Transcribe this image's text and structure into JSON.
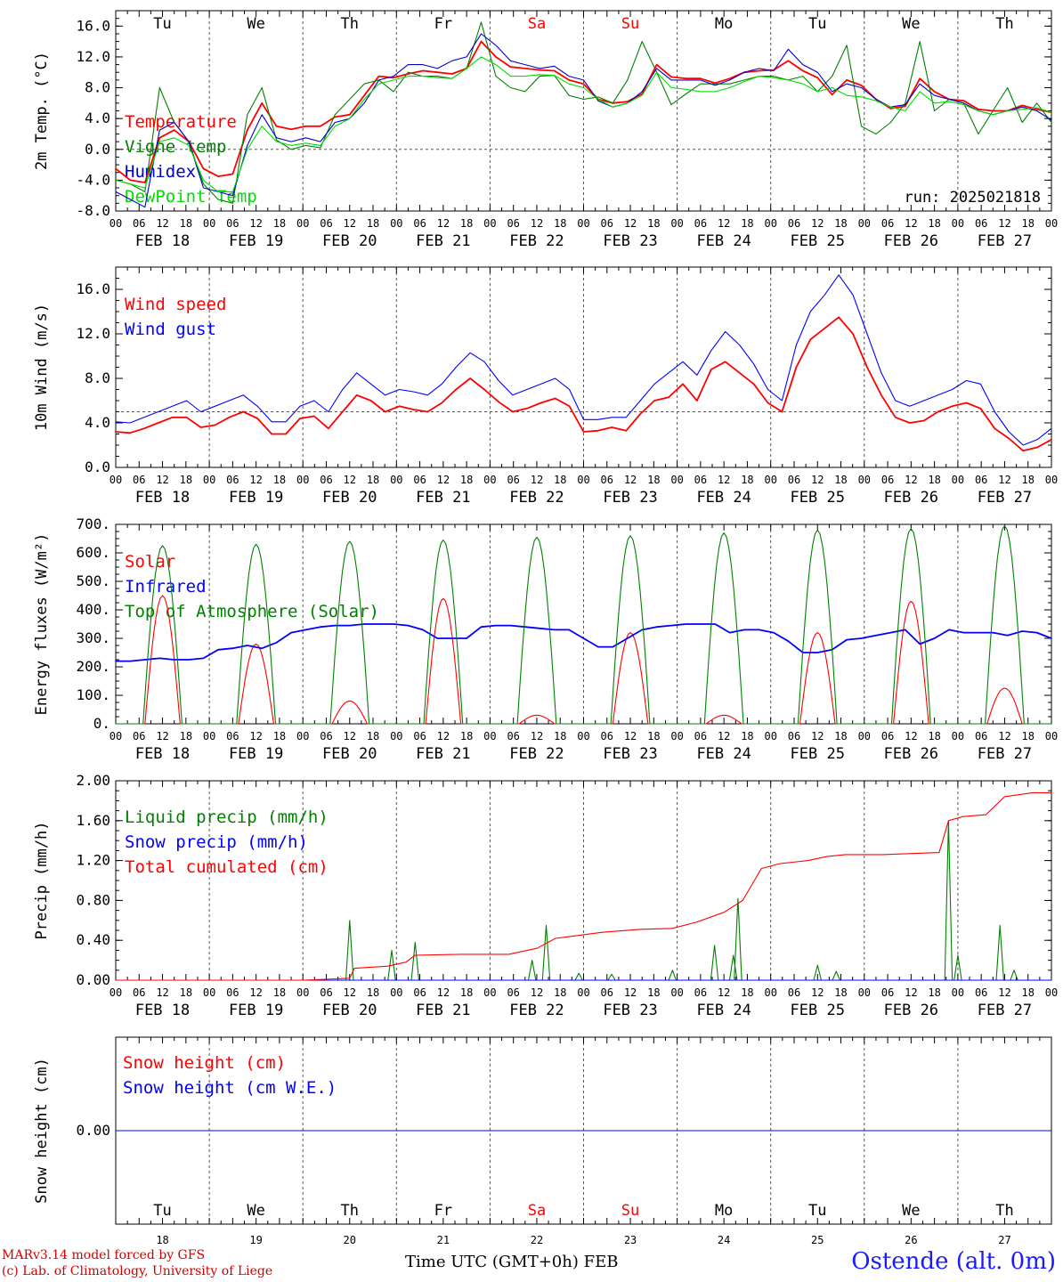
{
  "run_label": "run: 2025021818",
  "footer": {
    "model": "MARv3.14 model forced by GFS",
    "credit": "(c) Lab. of Climatology, University of Liege",
    "xaxis": "Time UTC (GMT+0h) FEB",
    "station": "Ostende (alt. 0m)"
  },
  "time_axis": {
    "days": [
      "FEB 18",
      "FEB 19",
      "FEB 20",
      "FEB 21",
      "FEB 22",
      "FEB 23",
      "FEB 24",
      "FEB 25",
      "FEB 26",
      "FEB 27"
    ],
    "weekdays": [
      "Tu",
      "We",
      "Th",
      "Fr",
      "Sa",
      "Su",
      "Mo",
      "Tu",
      "We",
      "Th"
    ],
    "weekend_color": "#ff0000",
    "weekday_color": "#000000",
    "day_numbers": [
      "18",
      "19",
      "20",
      "21",
      "22",
      "23",
      "24",
      "25",
      "26",
      "27"
    ],
    "hour_ticks": [
      "00",
      "06",
      "12",
      "18"
    ],
    "end_tick": "00"
  },
  "chart_data": [
    {
      "type": "line",
      "ylabel": "2m Temp. (°C)",
      "ylim": [
        -8,
        18
      ],
      "yticks": [
        "-8.0",
        "-4.0",
        "0.0",
        "4.0",
        "8.0",
        "12.0",
        "16.0"
      ],
      "reference_line": 0,
      "series": [
        {
          "name": "Temperature",
          "color": "#ff0000",
          "values": [
            -2.5,
            -4,
            -4.3,
            1.5,
            2.5,
            1,
            -2.5,
            -3.5,
            -3.2,
            2.5,
            6,
            3,
            2.6,
            3,
            3,
            4.2,
            4.5,
            7,
            9.5,
            9.3,
            9.8,
            10.2,
            10,
            9.8,
            10.5,
            14,
            12,
            10.7,
            10.5,
            10.3,
            10.2,
            9,
            8.5,
            6.5,
            6,
            6.2,
            7.2,
            11,
            9.4,
            9.2,
            9.2,
            8.6,
            9.2,
            10,
            10.2,
            10.3,
            11.5,
            10.2,
            9.3,
            7.1,
            9,
            8.3,
            6.5,
            5.3,
            5.6,
            9.2,
            7.5,
            6.5,
            6.3,
            5.2,
            5,
            5,
            5.7,
            5.2,
            4.8
          ]
        },
        {
          "name": "Vigne temp",
          "color": "#008000",
          "values": [
            -4,
            -4.5,
            -5.5,
            8,
            3.5,
            1,
            -4.5,
            -6.5,
            -7,
            4.5,
            8,
            1.2,
            0,
            0.5,
            0.2,
            4.5,
            6.5,
            8.5,
            9,
            7.5,
            10,
            9.5,
            9.5,
            9.2,
            10.5,
            16.5,
            9.5,
            8,
            7.5,
            9.5,
            9.6,
            7,
            6.5,
            6.8,
            6,
            9,
            14,
            10,
            5.8,
            7.2,
            8.5,
            8.5,
            8.5,
            9,
            9.5,
            9.5,
            9,
            9.5,
            7.5,
            9.5,
            13.5,
            3,
            2,
            3.5,
            6,
            14,
            5,
            6.5,
            6,
            2,
            5,
            8,
            3.5,
            6,
            3.5
          ]
        },
        {
          "name": "Humidex",
          "color": "#0000c8",
          "values": [
            -5.5,
            -6.5,
            -7.5,
            2.5,
            3.5,
            1,
            -5,
            -5.5,
            -6,
            0.5,
            4.5,
            1.5,
            1,
            1.5,
            1,
            3.5,
            4,
            6,
            9,
            9.5,
            11,
            11,
            10.5,
            11.5,
            12,
            15,
            13.5,
            11.5,
            11,
            10.5,
            10.8,
            9.5,
            9,
            6.3,
            5.5,
            6,
            7.5,
            10.5,
            9,
            9,
            9,
            8.3,
            9,
            10,
            10.5,
            10.2,
            13,
            11,
            10,
            7.5,
            8.5,
            8,
            6.5,
            5.5,
            5.8,
            8.5,
            7,
            6.5,
            6,
            5,
            4.5,
            5,
            5.5,
            5,
            3.8
          ]
        },
        {
          "name": "DewPoint Temp",
          "color": "#00dd00",
          "values": [
            -4,
            -4.5,
            -5,
            1,
            1.5,
            0.5,
            -4,
            -5.5,
            -5.5,
            0,
            3,
            1,
            0.5,
            0.8,
            0.5,
            3,
            4,
            6.5,
            8.5,
            9,
            9.5,
            9.5,
            9.3,
            9.2,
            10.5,
            12,
            11,
            9.5,
            9.5,
            9.7,
            9.6,
            8.5,
            8,
            6.5,
            5.5,
            6,
            7,
            10,
            8,
            7.8,
            7.5,
            7.5,
            8,
            8.8,
            9.5,
            9.3,
            9,
            8.5,
            7.5,
            8,
            7,
            6.8,
            6.3,
            5.5,
            5,
            7.5,
            6,
            6.2,
            5.8,
            5,
            4.5,
            5,
            5.2,
            5.4,
            4.8
          ]
        }
      ]
    },
    {
      "type": "line",
      "ylabel": "10m Wind (m/s)",
      "ylim": [
        0,
        18
      ],
      "yticks": [
        "0.0",
        "4.0",
        "8.0",
        "12.0",
        "16.0"
      ],
      "reference_line": 5,
      "series": [
        {
          "name": "Wind speed",
          "color": "#ff0000",
          "values": [
            3.2,
            3.1,
            3.5,
            4,
            4.5,
            4.5,
            3.6,
            3.8,
            4.5,
            5,
            4.4,
            3,
            3,
            4.4,
            4.6,
            3.5,
            5,
            6.5,
            6,
            5,
            5.5,
            5.2,
            5,
            5.8,
            7,
            8,
            7,
            5.9,
            5,
            5.3,
            5.8,
            6.2,
            5.5,
            3.2,
            3.3,
            3.6,
            3.3,
            4.8,
            6,
            6.3,
            7.5,
            6,
            8.8,
            9.5,
            8.5,
            7.5,
            5.8,
            5,
            9,
            11.5,
            12.5,
            13.5,
            12,
            9,
            6.5,
            4.5,
            4,
            4.2,
            5,
            5.5,
            5.8,
            5.3,
            3.5,
            2.6,
            1.5,
            1.8,
            2.5
          ]
        },
        {
          "name": "Wind gust",
          "color": "#0000ff",
          "values": [
            4.1,
            4,
            4.5,
            5,
            5.5,
            6,
            5,
            5.5,
            6,
            6.5,
            5.5,
            4.1,
            4.1,
            5.5,
            6,
            5,
            7,
            8.5,
            7.5,
            6.5,
            7,
            6.8,
            6.5,
            7.5,
            9,
            10.3,
            9.5,
            7.8,
            6.5,
            7,
            7.5,
            8,
            7,
            4.3,
            4.3,
            4.5,
            4.5,
            6,
            7.5,
            8.5,
            9.5,
            8.3,
            10.5,
            12.2,
            11,
            9.3,
            7,
            6,
            11,
            14,
            15.5,
            17.3,
            15.5,
            12,
            8.5,
            6,
            5.5,
            6,
            6.5,
            7,
            7.8,
            7.5,
            5,
            3.2,
            2,
            2.5,
            3.5
          ]
        }
      ]
    },
    {
      "type": "line",
      "ylabel": "Energy fluxes (W/m²)",
      "ylim": [
        0,
        700
      ],
      "yticks": [
        "0.",
        "100.",
        "200.",
        "300.",
        "400.",
        "500.",
        "600.",
        "700."
      ],
      "series": [
        {
          "name": "Solar",
          "color": "#ff0000",
          "peaks": [
            450,
            280,
            80,
            440,
            30,
            320,
            30,
            320,
            430,
            125
          ]
        },
        {
          "name": "Infrared",
          "color": "#0000ff",
          "values": [
            220,
            220,
            225,
            230,
            225,
            225,
            230,
            260,
            265,
            275,
            265,
            285,
            320,
            330,
            340,
            345,
            345,
            350,
            350,
            350,
            345,
            330,
            300,
            300,
            300,
            340,
            345,
            345,
            340,
            335,
            330,
            330,
            300,
            270,
            270,
            300,
            330,
            340,
            345,
            350,
            350,
            350,
            320,
            330,
            330,
            320,
            290,
            250,
            250,
            260,
            295,
            300,
            310,
            320,
            330,
            280,
            300,
            330,
            320,
            320,
            320,
            310,
            325,
            320,
            300
          ]
        },
        {
          "name": "Top of Atmosphere (Solar)",
          "color": "#008000",
          "peaks": [
            625,
            630,
            640,
            645,
            655,
            660,
            670,
            680,
            685,
            695
          ]
        }
      ]
    },
    {
      "type": "line",
      "ylabel": "Precip (mm/h)",
      "ylim": [
        0,
        2
      ],
      "yticks": [
        "0.00",
        "0.40",
        "0.80",
        "1.20",
        "1.60",
        "2.00"
      ],
      "series": [
        {
          "name": "Liquid precip (mm/h)",
          "color": "#008000",
          "events": [
            [
              2.5,
              0.6
            ],
            [
              2.95,
              0.3
            ],
            [
              3.2,
              0.38
            ],
            [
              4.45,
              0.2
            ],
            [
              4.6,
              0.55
            ],
            [
              4.95,
              0.07
            ],
            [
              5.3,
              0.06
            ],
            [
              5.95,
              0.1
            ],
            [
              6.4,
              0.35
            ],
            [
              6.6,
              0.25
            ],
            [
              6.65,
              0.82
            ],
            [
              7.5,
              0.15
            ],
            [
              7.7,
              0.09
            ],
            [
              8.9,
              1.6
            ],
            [
              9.0,
              0.25
            ],
            [
              9.45,
              0.55
            ],
            [
              9.6,
              0.1
            ]
          ]
        },
        {
          "name": "Snow precip (mm/h)",
          "color": "#0000ff",
          "values": [
            0
          ]
        },
        {
          "name": "Total cumulated (cm)",
          "color": "#ff0000",
          "points": [
            [
              0,
              0
            ],
            [
              2,
              0
            ],
            [
              2.5,
              0.02
            ],
            [
              2.55,
              0.12
            ],
            [
              2.9,
              0.14
            ],
            [
              3.1,
              0.18
            ],
            [
              3.2,
              0.25
            ],
            [
              3.7,
              0.26
            ],
            [
              4.2,
              0.26
            ],
            [
              4.5,
              0.32
            ],
            [
              4.7,
              0.42
            ],
            [
              5.2,
              0.48
            ],
            [
              5.6,
              0.51
            ],
            [
              5.95,
              0.52
            ],
            [
              6.2,
              0.58
            ],
            [
              6.5,
              0.68
            ],
            [
              6.7,
              0.8
            ],
            [
              6.9,
              1.12
            ],
            [
              7.1,
              1.17
            ],
            [
              7.4,
              1.2
            ],
            [
              7.6,
              1.24
            ],
            [
              7.8,
              1.26
            ],
            [
              8.2,
              1.26
            ],
            [
              8.8,
              1.28
            ],
            [
              8.9,
              1.6
            ],
            [
              9.05,
              1.64
            ],
            [
              9.3,
              1.66
            ],
            [
              9.5,
              1.84
            ],
            [
              9.8,
              1.88
            ],
            [
              10,
              1.88
            ]
          ]
        }
      ]
    },
    {
      "type": "line",
      "ylabel": "Snow height (cm)",
      "ylim": [
        -1,
        1
      ],
      "yticks": [
        "0.00"
      ],
      "series": [
        {
          "name": "Snow height (cm)",
          "color": "#ff0000",
          "values": [
            0,
            0
          ]
        },
        {
          "name": "Snow height (cm W.E.)",
          "color": "#0000ff",
          "values": [
            0,
            0
          ]
        }
      ]
    }
  ]
}
